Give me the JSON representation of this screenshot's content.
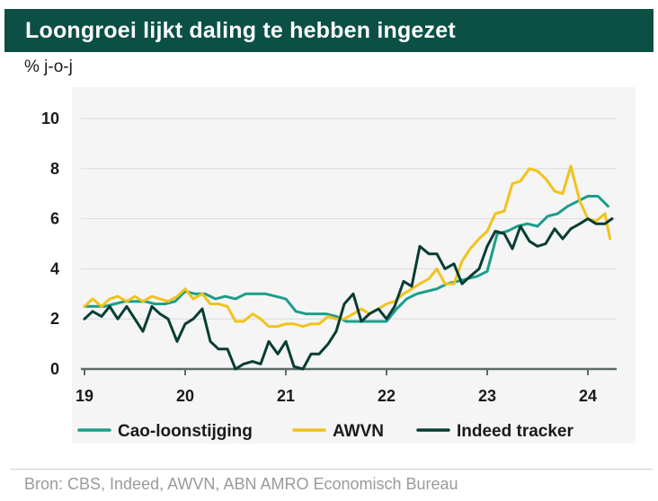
{
  "header": {
    "title": "Loongroei lijkt daling te hebben ingezet"
  },
  "footer": {
    "source": "Bron: CBS, Indeed, AWVN, ABN AMRO Economisch Bureau"
  },
  "chart_data": {
    "type": "line",
    "title": "Loongroei lijkt daling te hebben ingezet",
    "ylabel": "% j-o-j",
    "xlabel": "",
    "ylim": [
      0,
      10
    ],
    "xlim": [
      2019,
      2024.25
    ],
    "yticks": [
      "0",
      "2",
      "4",
      "6",
      "8",
      "10"
    ],
    "xticks": [
      "19",
      "20",
      "21",
      "22",
      "23",
      "24"
    ],
    "grid": "horizontal",
    "legend_position": "bottom",
    "series": [
      {
        "name": "Cao-loonstijging",
        "color": "#1a9e8a",
        "x": [
          2019.0,
          2019.1,
          2019.2,
          2019.3,
          2019.4,
          2019.5,
          2019.6,
          2019.7,
          2019.8,
          2019.9,
          2020.0,
          2020.1,
          2020.2,
          2020.3,
          2020.4,
          2020.5,
          2020.6,
          2020.7,
          2020.8,
          2020.9,
          2021.0,
          2021.1,
          2021.2,
          2021.3,
          2021.4,
          2021.5,
          2021.6,
          2021.7,
          2021.8,
          2021.9,
          2022.0,
          2022.1,
          2022.2,
          2022.3,
          2022.4,
          2022.5,
          2022.6,
          2022.7,
          2022.8,
          2022.9,
          2023.0,
          2023.1,
          2023.2,
          2023.3,
          2023.4,
          2023.5,
          2023.6,
          2023.7,
          2023.8,
          2023.9,
          2024.0,
          2024.1,
          2024.2
        ],
        "values": [
          2.5,
          2.5,
          2.5,
          2.6,
          2.7,
          2.7,
          2.7,
          2.6,
          2.6,
          2.7,
          3.1,
          3.0,
          3.0,
          2.8,
          2.9,
          2.8,
          3.0,
          3.0,
          3.0,
          2.9,
          2.8,
          2.3,
          2.2,
          2.2,
          2.2,
          2.1,
          1.9,
          1.9,
          1.9,
          1.9,
          1.9,
          2.4,
          2.8,
          3.0,
          3.1,
          3.2,
          3.4,
          3.5,
          3.6,
          3.7,
          3.9,
          5.4,
          5.5,
          5.7,
          5.8,
          5.7,
          6.1,
          6.2,
          6.5,
          6.7,
          6.9,
          6.9,
          6.5
        ]
      },
      {
        "name": "AWVN",
        "color": "#f2c21d",
        "x": [
          2019.0,
          2019.08,
          2019.17,
          2019.25,
          2019.33,
          2019.42,
          2019.5,
          2019.58,
          2019.67,
          2019.75,
          2019.83,
          2019.92,
          2020.0,
          2020.08,
          2020.17,
          2020.25,
          2020.33,
          2020.42,
          2020.5,
          2020.58,
          2020.67,
          2020.75,
          2020.83,
          2020.92,
          2021.0,
          2021.08,
          2021.17,
          2021.25,
          2021.33,
          2021.42,
          2021.5,
          2021.58,
          2021.67,
          2021.75,
          2021.83,
          2021.92,
          2022.0,
          2022.08,
          2022.17,
          2022.25,
          2022.33,
          2022.42,
          2022.5,
          2022.58,
          2022.67,
          2022.75,
          2022.83,
          2022.92,
          2023.0,
          2023.08,
          2023.17,
          2023.25,
          2023.33,
          2023.42,
          2023.5,
          2023.58,
          2023.67,
          2023.75,
          2023.83,
          2023.92,
          2024.0,
          2024.08,
          2024.17,
          2024.22
        ],
        "values": [
          2.5,
          2.8,
          2.5,
          2.8,
          2.9,
          2.7,
          2.9,
          2.7,
          2.9,
          2.8,
          2.7,
          2.9,
          3.2,
          2.8,
          3.0,
          2.6,
          2.6,
          2.5,
          1.9,
          1.9,
          2.2,
          2.0,
          1.7,
          1.7,
          1.8,
          1.8,
          1.7,
          1.8,
          1.8,
          2.1,
          2.0,
          2.0,
          2.2,
          2.4,
          2.2,
          2.4,
          2.6,
          2.7,
          3.0,
          3.2,
          3.4,
          3.6,
          4.0,
          3.4,
          3.4,
          4.3,
          4.8,
          5.2,
          5.5,
          6.2,
          6.3,
          7.4,
          7.5,
          8.0,
          7.9,
          7.6,
          7.1,
          7.0,
          8.1,
          6.7,
          6.0,
          5.9,
          6.2,
          5.2
        ]
      },
      {
        "name": "Indeed tracker",
        "color": "#083d34",
        "x": [
          2019.0,
          2019.08,
          2019.17,
          2019.25,
          2019.33,
          2019.42,
          2019.5,
          2019.58,
          2019.67,
          2019.75,
          2019.83,
          2019.92,
          2020.0,
          2020.08,
          2020.17,
          2020.25,
          2020.33,
          2020.42,
          2020.5,
          2020.58,
          2020.67,
          2020.75,
          2020.83,
          2020.92,
          2021.0,
          2021.08,
          2021.17,
          2021.25,
          2021.33,
          2021.42,
          2021.5,
          2021.58,
          2021.67,
          2021.75,
          2021.83,
          2021.92,
          2022.0,
          2022.08,
          2022.17,
          2022.25,
          2022.33,
          2022.42,
          2022.5,
          2022.58,
          2022.67,
          2022.75,
          2022.83,
          2022.92,
          2023.0,
          2023.08,
          2023.17,
          2023.25,
          2023.33,
          2023.42,
          2023.5,
          2023.58,
          2023.67,
          2023.75,
          2023.83,
          2023.92,
          2024.0,
          2024.08,
          2024.17,
          2024.24
        ],
        "values": [
          2.0,
          2.3,
          2.1,
          2.5,
          2.0,
          2.5,
          2.0,
          1.5,
          2.5,
          2.2,
          2.0,
          1.1,
          1.8,
          2.0,
          2.4,
          1.1,
          0.8,
          0.8,
          0.0,
          0.2,
          0.3,
          0.2,
          1.1,
          0.6,
          1.1,
          0.1,
          0.0,
          0.6,
          0.6,
          1.0,
          1.5,
          2.6,
          3.0,
          1.9,
          2.2,
          2.4,
          2.0,
          2.5,
          3.5,
          3.3,
          4.9,
          4.6,
          4.6,
          4.0,
          4.2,
          3.4,
          3.7,
          4.0,
          4.9,
          5.5,
          5.4,
          4.8,
          5.7,
          5.1,
          4.9,
          5.0,
          5.6,
          5.2,
          5.6,
          5.8,
          6.0,
          5.8,
          5.8,
          6.0
        ]
      }
    ]
  }
}
